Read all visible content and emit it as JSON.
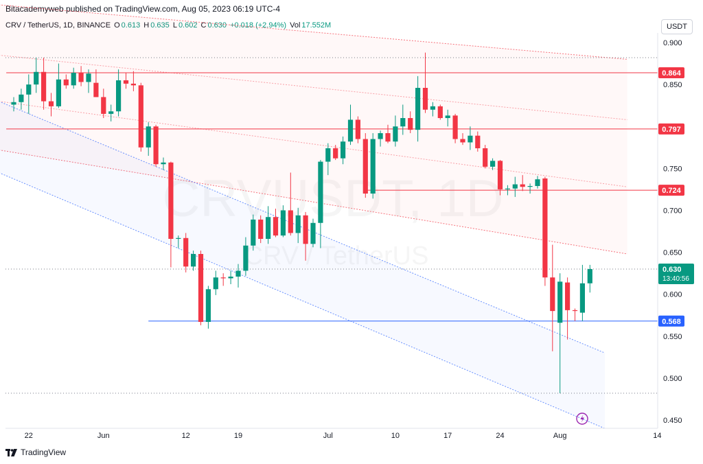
{
  "header": {
    "published_text": "Bitacademyweb published on TradingView.com, Aug 05, 2023 06:19 UTC-4"
  },
  "symbol": {
    "name": "CRV / TetherUS, 1D, BINANCE",
    "open_label": "O",
    "open": "0.613",
    "high_label": "H",
    "high": "0.635",
    "low_label": "L",
    "low": "0.602",
    "close_label": "C",
    "close": "0.630",
    "change": "+0.018 (+2.94%)",
    "vol_label": "Vol",
    "vol": "17.552M"
  },
  "currency_button": "USDT",
  "watermark": {
    "line1": "CRVUSDT, 1D",
    "line2": "CRV / TetherUS"
  },
  "footer": {
    "brand": "TradingView",
    "logo_icon": "tradingview-logo-icon"
  },
  "colors": {
    "up": "#089981",
    "down": "#f23645",
    "resistance": "#f23645",
    "support": "#2962ff"
  },
  "chart_data": {
    "type": "candlestick",
    "y_axis": {
      "min": 0.44,
      "max": 0.91,
      "ticks": [
        "0.900",
        "0.850",
        "0.800",
        "0.750",
        "0.700",
        "0.650",
        "0.600",
        "0.550",
        "0.500",
        "0.450"
      ]
    },
    "x_ticks": [
      {
        "label": "22",
        "day": "2023-05-22"
      },
      {
        "label": "Jun",
        "day": "2023-06-01"
      },
      {
        "label": "12",
        "day": "2023-06-12"
      },
      {
        "label": "19",
        "day": "2023-06-19"
      },
      {
        "label": "Jul",
        "day": "2023-07-01"
      },
      {
        "label": "10",
        "day": "2023-07-10"
      },
      {
        "label": "17",
        "day": "2023-07-17"
      },
      {
        "label": "24",
        "day": "2023-07-24"
      },
      {
        "label": "Aug",
        "day": "2023-08-01"
      },
      {
        "label": "14",
        "day": "2023-08-14"
      }
    ],
    "candles": [
      {
        "date": "2023-05-20",
        "o": 0.826,
        "h": 0.835,
        "l": 0.818,
        "c": 0.829
      },
      {
        "date": "2023-05-21",
        "o": 0.829,
        "h": 0.845,
        "l": 0.82,
        "c": 0.838
      },
      {
        "date": "2023-05-22",
        "o": 0.838,
        "h": 0.862,
        "l": 0.815,
        "c": 0.85
      },
      {
        "date": "2023-05-23",
        "o": 0.85,
        "h": 0.882,
        "l": 0.84,
        "c": 0.865
      },
      {
        "date": "2023-05-24",
        "o": 0.865,
        "h": 0.882,
        "l": 0.82,
        "c": 0.83
      },
      {
        "date": "2023-05-25",
        "o": 0.83,
        "h": 0.84,
        "l": 0.812,
        "c": 0.824
      },
      {
        "date": "2023-05-26",
        "o": 0.824,
        "h": 0.875,
        "l": 0.822,
        "c": 0.856
      },
      {
        "date": "2023-05-27",
        "o": 0.856,
        "h": 0.862,
        "l": 0.845,
        "c": 0.849
      },
      {
        "date": "2023-05-28",
        "o": 0.849,
        "h": 0.87,
        "l": 0.845,
        "c": 0.864
      },
      {
        "date": "2023-05-29",
        "o": 0.864,
        "h": 0.872,
        "l": 0.848,
        "c": 0.853
      },
      {
        "date": "2023-05-30",
        "o": 0.853,
        "h": 0.868,
        "l": 0.84,
        "c": 0.863
      },
      {
        "date": "2023-05-31",
        "o": 0.852,
        "h": 0.868,
        "l": 0.835,
        "c": 0.835
      },
      {
        "date": "2023-06-01",
        "o": 0.835,
        "h": 0.845,
        "l": 0.81,
        "c": 0.815
      },
      {
        "date": "2023-06-02",
        "o": 0.815,
        "h": 0.826,
        "l": 0.806,
        "c": 0.818
      },
      {
        "date": "2023-06-03",
        "o": 0.818,
        "h": 0.868,
        "l": 0.812,
        "c": 0.855
      },
      {
        "date": "2023-06-04",
        "o": 0.855,
        "h": 0.864,
        "l": 0.845,
        "c": 0.851
      },
      {
        "date": "2023-06-05",
        "o": 0.851,
        "h": 0.866,
        "l": 0.842,
        "c": 0.849
      },
      {
        "date": "2023-06-06",
        "o": 0.849,
        "h": 0.852,
        "l": 0.77,
        "c": 0.775
      },
      {
        "date": "2023-06-07",
        "o": 0.775,
        "h": 0.805,
        "l": 0.765,
        "c": 0.8
      },
      {
        "date": "2023-06-08",
        "o": 0.8,
        "h": 0.802,
        "l": 0.752,
        "c": 0.755
      },
      {
        "date": "2023-06-09",
        "o": 0.755,
        "h": 0.763,
        "l": 0.748,
        "c": 0.757
      },
      {
        "date": "2023-06-10",
        "o": 0.757,
        "h": 0.758,
        "l": 0.632,
        "c": 0.666
      },
      {
        "date": "2023-06-11",
        "o": 0.666,
        "h": 0.67,
        "l": 0.655,
        "c": 0.667
      },
      {
        "date": "2023-06-12",
        "o": 0.667,
        "h": 0.673,
        "l": 0.626,
        "c": 0.633
      },
      {
        "date": "2023-06-13",
        "o": 0.633,
        "h": 0.652,
        "l": 0.628,
        "c": 0.648
      },
      {
        "date": "2023-06-14",
        "o": 0.648,
        "h": 0.652,
        "l": 0.563,
        "c": 0.567
      },
      {
        "date": "2023-06-15",
        "o": 0.567,
        "h": 0.61,
        "l": 0.559,
        "c": 0.606
      },
      {
        "date": "2023-06-16",
        "o": 0.606,
        "h": 0.628,
        "l": 0.599,
        "c": 0.62
      },
      {
        "date": "2023-06-17",
        "o": 0.62,
        "h": 0.625,
        "l": 0.61,
        "c": 0.619
      },
      {
        "date": "2023-06-18",
        "o": 0.619,
        "h": 0.628,
        "l": 0.612,
        "c": 0.621
      },
      {
        "date": "2023-06-19",
        "o": 0.621,
        "h": 0.636,
        "l": 0.608,
        "c": 0.628
      },
      {
        "date": "2023-06-20",
        "o": 0.628,
        "h": 0.668,
        "l": 0.622,
        "c": 0.658
      },
      {
        "date": "2023-06-21",
        "o": 0.658,
        "h": 0.695,
        "l": 0.652,
        "c": 0.689
      },
      {
        "date": "2023-06-22",
        "o": 0.689,
        "h": 0.694,
        "l": 0.661,
        "c": 0.666
      },
      {
        "date": "2023-06-23",
        "o": 0.666,
        "h": 0.705,
        "l": 0.66,
        "c": 0.692
      },
      {
        "date": "2023-06-24",
        "o": 0.692,
        "h": 0.702,
        "l": 0.668,
        "c": 0.67
      },
      {
        "date": "2023-06-25",
        "o": 0.67,
        "h": 0.706,
        "l": 0.668,
        "c": 0.7
      },
      {
        "date": "2023-06-26",
        "o": 0.7,
        "h": 0.745,
        "l": 0.67,
        "c": 0.673
      },
      {
        "date": "2023-06-27",
        "o": 0.673,
        "h": 0.703,
        "l": 0.661,
        "c": 0.694
      },
      {
        "date": "2023-06-28",
        "o": 0.694,
        "h": 0.698,
        "l": 0.64,
        "c": 0.66
      },
      {
        "date": "2023-06-29",
        "o": 0.66,
        "h": 0.69,
        "l": 0.656,
        "c": 0.685
      },
      {
        "date": "2023-06-30",
        "o": 0.685,
        "h": 0.76,
        "l": 0.655,
        "c": 0.758
      },
      {
        "date": "2023-07-01",
        "o": 0.758,
        "h": 0.78,
        "l": 0.742,
        "c": 0.774
      },
      {
        "date": "2023-07-02",
        "o": 0.774,
        "h": 0.778,
        "l": 0.76,
        "c": 0.762
      },
      {
        "date": "2023-07-03",
        "o": 0.762,
        "h": 0.788,
        "l": 0.755,
        "c": 0.782
      },
      {
        "date": "2023-07-04",
        "o": 0.782,
        "h": 0.826,
        "l": 0.778,
        "c": 0.808
      },
      {
        "date": "2023-07-05",
        "o": 0.808,
        "h": 0.812,
        "l": 0.78,
        "c": 0.785
      },
      {
        "date": "2023-07-06",
        "o": 0.785,
        "h": 0.792,
        "l": 0.715,
        "c": 0.72
      },
      {
        "date": "2023-07-07",
        "o": 0.72,
        "h": 0.792,
        "l": 0.714,
        "c": 0.785
      },
      {
        "date": "2023-07-08",
        "o": 0.785,
        "h": 0.795,
        "l": 0.776,
        "c": 0.792
      },
      {
        "date": "2023-07-09",
        "o": 0.792,
        "h": 0.802,
        "l": 0.78,
        "c": 0.782
      },
      {
        "date": "2023-07-10",
        "o": 0.782,
        "h": 0.813,
        "l": 0.776,
        "c": 0.8
      },
      {
        "date": "2023-07-11",
        "o": 0.8,
        "h": 0.826,
        "l": 0.79,
        "c": 0.81
      },
      {
        "date": "2023-07-12",
        "o": 0.81,
        "h": 0.818,
        "l": 0.792,
        "c": 0.796
      },
      {
        "date": "2023-07-13",
        "o": 0.796,
        "h": 0.86,
        "l": 0.782,
        "c": 0.846
      },
      {
        "date": "2023-07-14",
        "o": 0.846,
        "h": 0.888,
        "l": 0.816,
        "c": 0.82
      },
      {
        "date": "2023-07-15",
        "o": 0.82,
        "h": 0.829,
        "l": 0.812,
        "c": 0.824
      },
      {
        "date": "2023-07-16",
        "o": 0.824,
        "h": 0.826,
        "l": 0.808,
        "c": 0.81
      },
      {
        "date": "2023-07-17",
        "o": 0.81,
        "h": 0.82,
        "l": 0.8,
        "c": 0.813
      },
      {
        "date": "2023-07-18",
        "o": 0.813,
        "h": 0.815,
        "l": 0.78,
        "c": 0.785
      },
      {
        "date": "2023-07-19",
        "o": 0.785,
        "h": 0.792,
        "l": 0.778,
        "c": 0.781
      },
      {
        "date": "2023-07-20",
        "o": 0.781,
        "h": 0.8,
        "l": 0.772,
        "c": 0.789
      },
      {
        "date": "2023-07-21",
        "o": 0.789,
        "h": 0.794,
        "l": 0.77,
        "c": 0.774
      },
      {
        "date": "2023-07-22",
        "o": 0.774,
        "h": 0.778,
        "l": 0.75,
        "c": 0.752
      },
      {
        "date": "2023-07-23",
        "o": 0.752,
        "h": 0.762,
        "l": 0.748,
        "c": 0.759
      },
      {
        "date": "2023-07-24",
        "o": 0.759,
        "h": 0.76,
        "l": 0.718,
        "c": 0.725
      },
      {
        "date": "2023-07-25",
        "o": 0.725,
        "h": 0.73,
        "l": 0.718,
        "c": 0.726
      },
      {
        "date": "2023-07-26",
        "o": 0.726,
        "h": 0.74,
        "l": 0.716,
        "c": 0.731
      },
      {
        "date": "2023-07-27",
        "o": 0.731,
        "h": 0.742,
        "l": 0.723,
        "c": 0.728
      },
      {
        "date": "2023-07-28",
        "o": 0.728,
        "h": 0.732,
        "l": 0.72,
        "c": 0.729
      },
      {
        "date": "2023-07-29",
        "o": 0.729,
        "h": 0.741,
        "l": 0.726,
        "c": 0.737
      },
      {
        "date": "2023-07-30",
        "o": 0.738,
        "h": 0.74,
        "l": 0.61,
        "c": 0.62
      },
      {
        "date": "2023-07-31",
        "o": 0.62,
        "h": 0.659,
        "l": 0.532,
        "c": 0.58
      },
      {
        "date": "2023-08-01",
        "o": 0.566,
        "h": 0.625,
        "l": 0.482,
        "c": 0.615
      },
      {
        "date": "2023-08-02",
        "o": 0.614,
        "h": 0.62,
        "l": 0.546,
        "c": 0.581
      },
      {
        "date": "2023-08-03",
        "o": 0.581,
        "h": 0.583,
        "l": 0.568,
        "c": 0.58
      },
      {
        "date": "2023-08-04",
        "o": 0.578,
        "h": 0.635,
        "l": 0.568,
        "c": 0.613
      },
      {
        "date": "2023-08-05",
        "o": 0.613,
        "h": 0.635,
        "l": 0.602,
        "c": 0.63
      }
    ],
    "horizontal_levels": [
      {
        "value": 0.864,
        "label": "0.864",
        "kind": "resistance",
        "from": "2023-05-19"
      },
      {
        "value": 0.797,
        "label": "0.797",
        "kind": "resistance",
        "from": "2023-05-19"
      },
      {
        "value": 0.724,
        "label": "0.724",
        "kind": "resistance",
        "from": "2023-07-06"
      },
      {
        "value": 0.568,
        "label": "0.568",
        "kind": "support",
        "from": "2023-06-07"
      }
    ],
    "last_price": {
      "value": 0.63,
      "label": "0.630",
      "countdown": "13:40:56"
    },
    "dotted_levels": [
      0.882,
      0.63,
      0.482
    ],
    "descending_channel_red": {
      "start": "2023-05-18",
      "end": "2023-08-10",
      "lines": [
        [
          0.945,
          0.88
        ],
        [
          0.885,
          0.808
        ],
        [
          0.83,
          0.728
        ],
        [
          0.772,
          0.648
        ]
      ]
    },
    "descending_channel_blue": {
      "start": "2023-05-18",
      "end": "2023-08-07",
      "lines": [
        [
          0.83,
          0.53
        ],
        [
          0.745,
          0.44
        ]
      ]
    },
    "grid": false
  }
}
